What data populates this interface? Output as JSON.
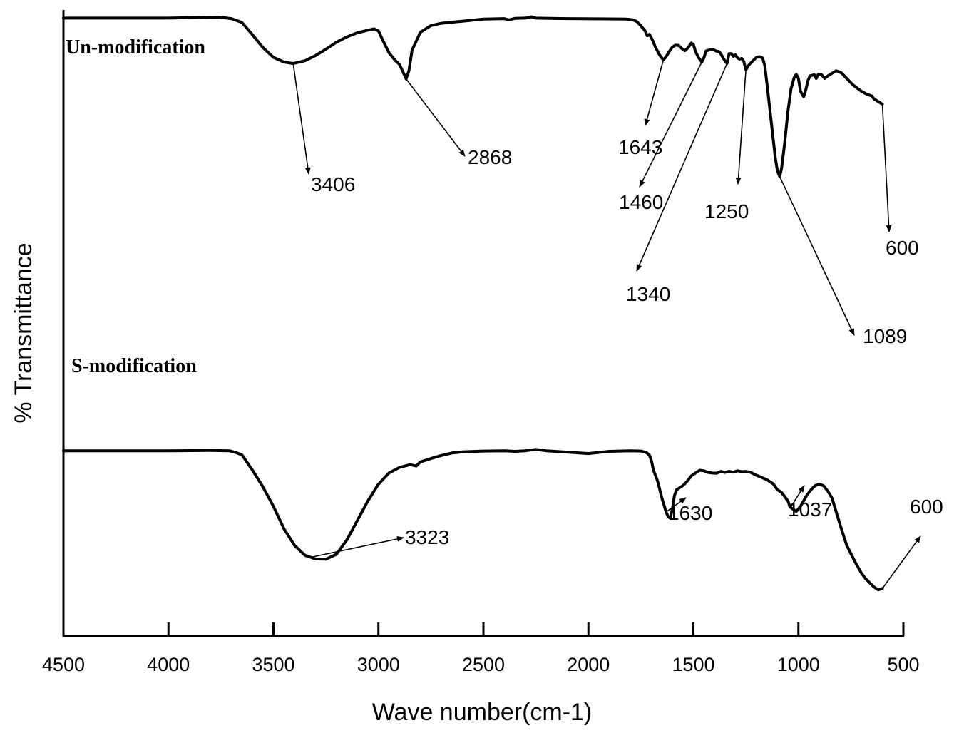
{
  "chart_data": {
    "type": "line",
    "title": "",
    "xlabel": "Wave number(cm-1)",
    "ylabel": "% Transmittance",
    "xlim": [
      4500,
      500
    ],
    "x_reversed": true,
    "xticks": [
      4500,
      4000,
      3500,
      3000,
      2500,
      2000,
      1500,
      1000,
      500
    ],
    "y_ticks_shown": false,
    "ylim": [
      0,
      100
    ],
    "grid": false,
    "legend": "none",
    "series": [
      {
        "name": "Un-modification",
        "points": [
          [
            4500,
            98.5
          ],
          [
            4000,
            98.5
          ],
          [
            3760,
            98.9
          ],
          [
            3700,
            98.3
          ],
          [
            3650,
            96.8
          ],
          [
            3600,
            92
          ],
          [
            3550,
            87
          ],
          [
            3500,
            83.2
          ],
          [
            3450,
            81.4
          ],
          [
            3406,
            80.8
          ],
          [
            3350,
            81.9
          ],
          [
            3300,
            83.9
          ],
          [
            3250,
            86.4
          ],
          [
            3200,
            89.1
          ],
          [
            3150,
            91.2
          ],
          [
            3100,
            92.8
          ],
          [
            3050,
            93.8
          ],
          [
            3020,
            94.3
          ],
          [
            3000,
            93.5
          ],
          [
            2980,
            90
          ],
          [
            2950,
            85
          ],
          [
            2920,
            82
          ],
          [
            2900,
            80.5
          ],
          [
            2880,
            77
          ],
          [
            2868,
            74.8
          ],
          [
            2855,
            78
          ],
          [
            2840,
            86
          ],
          [
            2800,
            93
          ],
          [
            2750,
            95.6
          ],
          [
            2700,
            96.5
          ],
          [
            2600,
            97.3
          ],
          [
            2500,
            98.1
          ],
          [
            2400,
            98.3
          ],
          [
            2380,
            97.8
          ],
          [
            2350,
            98.4
          ],
          [
            2300,
            98.5
          ],
          [
            2270,
            99.0
          ],
          [
            2250,
            98.5
          ],
          [
            2100,
            98.3
          ],
          [
            1900,
            98.2
          ],
          [
            1820,
            98.1
          ],
          [
            1790,
            97.9
          ],
          [
            1770,
            97.2
          ],
          [
            1750,
            95.5
          ],
          [
            1730,
            93.5
          ],
          [
            1720,
            91.6
          ],
          [
            1710,
            92.2
          ],
          [
            1700,
            90.8
          ],
          [
            1690,
            89
          ],
          [
            1680,
            87
          ],
          [
            1660,
            84
          ],
          [
            1643,
            82.2
          ],
          [
            1630,
            83.5
          ],
          [
            1615,
            85.5
          ],
          [
            1600,
            87.2
          ],
          [
            1585,
            88
          ],
          [
            1570,
            87.8
          ],
          [
            1555,
            86.6
          ],
          [
            1540,
            85.8
          ],
          [
            1525,
            87
          ],
          [
            1510,
            88.8
          ],
          [
            1500,
            88.2
          ],
          [
            1490,
            85.5
          ],
          [
            1475,
            83
          ],
          [
            1460,
            81.4
          ],
          [
            1450,
            83
          ],
          [
            1440,
            85.7
          ],
          [
            1420,
            86.2
          ],
          [
            1405,
            86.2
          ],
          [
            1390,
            85.6
          ],
          [
            1380,
            85.5
          ],
          [
            1370,
            84.7
          ],
          [
            1355,
            82.5
          ],
          [
            1340,
            80.8
          ],
          [
            1330,
            84.7
          ],
          [
            1320,
            84.7
          ],
          [
            1310,
            83.6
          ],
          [
            1300,
            84.2
          ],
          [
            1290,
            83
          ],
          [
            1280,
            82.5
          ],
          [
            1270,
            82.8
          ],
          [
            1260,
            81.6
          ],
          [
            1250,
            78.4
          ],
          [
            1235,
            80.3
          ],
          [
            1220,
            81.6
          ],
          [
            1200,
            83.2
          ],
          [
            1185,
            83.5
          ],
          [
            1170,
            82.9
          ],
          [
            1160,
            80
          ],
          [
            1150,
            73
          ],
          [
            1140,
            66
          ],
          [
            1125,
            55
          ],
          [
            1110,
            44
          ],
          [
            1100,
            39
          ],
          [
            1089,
            36.8
          ],
          [
            1080,
            40
          ],
          [
            1065,
            50
          ],
          [
            1050,
            62
          ],
          [
            1035,
            71
          ],
          [
            1020,
            75.4
          ],
          [
            1010,
            76.6
          ],
          [
            1000,
            75
          ],
          [
            990,
            70
          ],
          [
            975,
            67.9
          ],
          [
            965,
            70.5
          ],
          [
            955,
            74
          ],
          [
            945,
            76
          ],
          [
            935,
            76.2
          ],
          [
            925,
            76.5
          ],
          [
            915,
            75
          ],
          [
            905,
            76.7
          ],
          [
            890,
            76.5
          ],
          [
            875,
            75
          ],
          [
            860,
            76
          ],
          [
            840,
            77
          ],
          [
            820,
            78
          ],
          [
            795,
            77.2
          ],
          [
            770,
            75
          ],
          [
            740,
            72.5
          ],
          [
            700,
            70
          ],
          [
            670,
            68.7
          ],
          [
            650,
            68.2
          ],
          [
            640,
            67
          ],
          [
            620,
            66
          ],
          [
            600,
            65
          ]
        ]
      },
      {
        "name": "S-modification",
        "points": [
          [
            4500,
            52
          ],
          [
            4000,
            52
          ],
          [
            3800,
            52.1
          ],
          [
            3710,
            52
          ],
          [
            3680,
            51.4
          ],
          [
            3650,
            50.5
          ],
          [
            3600,
            45
          ],
          [
            3550,
            39
          ],
          [
            3500,
            32
          ],
          [
            3450,
            24
          ],
          [
            3400,
            18
          ],
          [
            3350,
            14.4
          ],
          [
            3300,
            13.1
          ],
          [
            3250,
            13.0
          ],
          [
            3200,
            14.8
          ],
          [
            3150,
            20
          ],
          [
            3100,
            27
          ],
          [
            3050,
            34
          ],
          [
            3000,
            40
          ],
          [
            2950,
            44
          ],
          [
            2900,
            46
          ],
          [
            2850,
            47
          ],
          [
            2820,
            46.5
          ],
          [
            2800,
            48
          ],
          [
            2750,
            49.2
          ],
          [
            2700,
            50.3
          ],
          [
            2650,
            51.2
          ],
          [
            2600,
            51.6
          ],
          [
            2500,
            51.9
          ],
          [
            2400,
            52
          ],
          [
            2350,
            51.8
          ],
          [
            2300,
            52
          ],
          [
            2250,
            52.5
          ],
          [
            2200,
            52
          ],
          [
            2100,
            51.5
          ],
          [
            2000,
            51
          ],
          [
            1950,
            51.4
          ],
          [
            1900,
            51.8
          ],
          [
            1800,
            52
          ],
          [
            1750,
            51.9
          ],
          [
            1725,
            51.4
          ],
          [
            1710,
            50.5
          ],
          [
            1700,
            48.5
          ],
          [
            1690,
            45
          ],
          [
            1670,
            41
          ],
          [
            1650,
            35
          ],
          [
            1630,
            30
          ],
          [
            1620,
            28.2
          ],
          [
            1610,
            27.8
          ],
          [
            1600,
            31
          ],
          [
            1590,
            36
          ],
          [
            1580,
            38
          ],
          [
            1570,
            38.5
          ],
          [
            1550,
            39.5
          ],
          [
            1530,
            41
          ],
          [
            1510,
            43
          ],
          [
            1490,
            44
          ],
          [
            1470,
            45
          ],
          [
            1450,
            44.8
          ],
          [
            1430,
            44.2
          ],
          [
            1410,
            44
          ],
          [
            1390,
            43.9
          ],
          [
            1370,
            44.6
          ],
          [
            1350,
            44.2
          ],
          [
            1330,
            44.6
          ],
          [
            1310,
            44.3
          ],
          [
            1290,
            44.8
          ],
          [
            1270,
            44.5
          ],
          [
            1250,
            44.6
          ],
          [
            1230,
            44.3
          ],
          [
            1200,
            43.2
          ],
          [
            1180,
            42.6
          ],
          [
            1150,
            41.6
          ],
          [
            1120,
            40.1
          ],
          [
            1100,
            38
          ],
          [
            1080,
            37
          ],
          [
            1065,
            35.5
          ],
          [
            1050,
            34
          ],
          [
            1040,
            31.8
          ],
          [
            1025,
            31
          ],
          [
            1010,
            30.2
          ],
          [
            990,
            32
          ],
          [
            975,
            34
          ],
          [
            960,
            36
          ],
          [
            940,
            38
          ],
          [
            920,
            39.5
          ],
          [
            900,
            40
          ],
          [
            880,
            39.4
          ],
          [
            860,
            37.5
          ],
          [
            840,
            35
          ],
          [
            820,
            30
          ],
          [
            800,
            25
          ],
          [
            770,
            18
          ],
          [
            730,
            12
          ],
          [
            700,
            8
          ],
          [
            680,
            6
          ],
          [
            660,
            4.5
          ],
          [
            640,
            3
          ],
          [
            620,
            2
          ],
          [
            600,
            2.5
          ]
        ]
      }
    ],
    "annotations": [
      {
        "label": "3406",
        "series": 0,
        "x": 3406
      },
      {
        "label": "2868",
        "series": 0,
        "x": 2868
      },
      {
        "label": "1643",
        "series": 0,
        "x": 1643
      },
      {
        "label": "1460",
        "series": 0,
        "x": 1460
      },
      {
        "label": "1340",
        "series": 0,
        "x": 1340
      },
      {
        "label": "1250",
        "series": 0,
        "x": 1250
      },
      {
        "label": "1089",
        "series": 0,
        "x": 1089
      },
      {
        "label": "600",
        "series": 0,
        "x": 600
      },
      {
        "label": "3323",
        "series": 1,
        "x": 3323
      },
      {
        "label": "1630",
        "series": 1,
        "x": 1630
      },
      {
        "label": "1037",
        "series": 1,
        "x": 1037
      },
      {
        "label": "600",
        "series": 1,
        "x": 600
      }
    ]
  }
}
